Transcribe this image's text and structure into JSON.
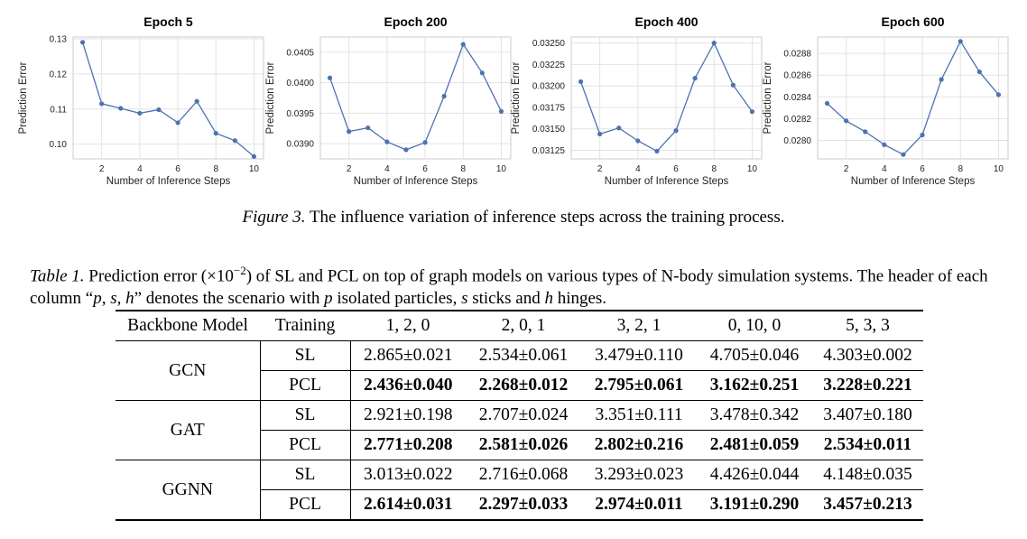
{
  "chart_data": [
    {
      "type": "line",
      "title": "Epoch 5",
      "xlabel": "Number of Inference Steps",
      "ylabel": "Prediction Error",
      "x": [
        1,
        2,
        3,
        4,
        5,
        6,
        7,
        8,
        9,
        10
      ],
      "y": [
        0.129,
        0.1115,
        0.1102,
        0.1088,
        0.1098,
        0.1061,
        0.1122,
        0.1031,
        0.101,
        0.0965
      ],
      "xlim": [
        0.5,
        10.5
      ],
      "ylim": [
        0.0958,
        0.1305
      ],
      "xticks": [
        2,
        4,
        6,
        8,
        10
      ],
      "xticklabels": [
        "2",
        "4",
        "6",
        "8",
        "10"
      ],
      "yticks": [
        0.1,
        0.11,
        0.12,
        0.13
      ],
      "yticklabels": [
        "0.10",
        "0.11",
        "0.12",
        "0.13"
      ],
      "grid": true
    },
    {
      "type": "line",
      "title": "Epoch 200",
      "xlabel": "Number of Inference Steps",
      "ylabel": "Prediction Error",
      "x": [
        1,
        2,
        3,
        4,
        5,
        6,
        7,
        8,
        9,
        10
      ],
      "y": [
        0.04008,
        0.0392,
        0.03926,
        0.03903,
        0.0389,
        0.03902,
        0.03978,
        0.04063,
        0.04016,
        0.03953
      ],
      "xlim": [
        0.5,
        10.5
      ],
      "ylim": [
        0.03875,
        0.04075
      ],
      "xticks": [
        2,
        4,
        6,
        8,
        10
      ],
      "xticklabels": [
        "2",
        "4",
        "6",
        "8",
        "10"
      ],
      "yticks": [
        0.039,
        0.0395,
        0.04,
        0.0405
      ],
      "yticklabels": [
        "0.0390",
        "0.0395",
        "0.0400",
        "0.0405"
      ],
      "grid": true
    },
    {
      "type": "line",
      "title": "Epoch 400",
      "xlabel": "Number of Inference Steps",
      "ylabel": "Prediction Error",
      "x": [
        1,
        2,
        3,
        4,
        5,
        6,
        7,
        8,
        9,
        10
      ],
      "y": [
        0.03205,
        0.03144,
        0.03151,
        0.03136,
        0.03124,
        0.03148,
        0.03209,
        0.0325,
        0.03201,
        0.0317
      ],
      "xlim": [
        0.5,
        10.5
      ],
      "ylim": [
        0.03115,
        0.03257
      ],
      "xticks": [
        2,
        4,
        6,
        8,
        10
      ],
      "xticklabels": [
        "2",
        "4",
        "6",
        "8",
        "10"
      ],
      "yticks": [
        0.03125,
        0.0315,
        0.03175,
        0.032,
        0.03225,
        0.0325
      ],
      "yticklabels": [
        "0.03125",
        "0.03150",
        "0.03175",
        "0.03200",
        "0.03225",
        "0.03250"
      ],
      "grid": true
    },
    {
      "type": "line",
      "title": "Epoch 600",
      "xlabel": "Number of Inference Steps",
      "ylabel": "Prediction Error",
      "x": [
        1,
        2,
        3,
        4,
        5,
        6,
        7,
        8,
        9,
        10
      ],
      "y": [
        0.02834,
        0.02818,
        0.02808,
        0.02796,
        0.02787,
        0.02805,
        0.02856,
        0.02891,
        0.02863,
        0.02842
      ],
      "xlim": [
        0.5,
        10.5
      ],
      "ylim": [
        0.02783,
        0.02895
      ],
      "xticks": [
        2,
        4,
        6,
        8,
        10
      ],
      "xticklabels": [
        "2",
        "4",
        "6",
        "8",
        "10"
      ],
      "yticks": [
        0.028,
        0.0282,
        0.0284,
        0.0286,
        0.0288
      ],
      "yticklabels": [
        "0.0280",
        "0.0282",
        "0.0284",
        "0.0286",
        "0.0288"
      ],
      "grid": true
    }
  ],
  "figure_caption": {
    "label": "Figure 3.",
    "text": "The influence variation of inference steps across the training process."
  },
  "table_caption": {
    "label": "Table 1.",
    "part1": "Prediction error (×10",
    "exp": "−2",
    "part2": ") of SL and PCL on top of graph models on various types of N-body simulation systems. The header of each column “",
    "vars": "p, s, h",
    "part3": "” denotes the scenario with ",
    "v1": "p",
    "part4": " isolated particles, ",
    "v2": "s",
    "part5": " sticks and ",
    "v3": "h",
    "part6": " hinges."
  },
  "table": {
    "headers": [
      "Backbone Model",
      "Training",
      "1, 2, 0",
      "2, 0, 1",
      "3, 2, 1",
      "0, 10, 0",
      "5, 3, 3"
    ],
    "groups": [
      {
        "model": "GCN",
        "sl": [
          "2.865±0.021",
          "2.534±0.061",
          "3.479±0.110",
          "4.705±0.046",
          "4.303±0.002"
        ],
        "pcl": [
          "2.436±0.040",
          "2.268±0.012",
          "2.795±0.061",
          "3.162±0.251",
          "3.228±0.221"
        ]
      },
      {
        "model": "GAT",
        "sl": [
          "2.921±0.198",
          "2.707±0.024",
          "3.351±0.111",
          "3.478±0.342",
          "3.407±0.180"
        ],
        "pcl": [
          "2.771±0.208",
          "2.581±0.026",
          "2.802±0.216",
          "2.481±0.059",
          "2.534±0.011"
        ]
      },
      {
        "model": "GGNN",
        "sl": [
          "3.013±0.022",
          "2.716±0.068",
          "3.293±0.023",
          "4.426±0.044",
          "4.148±0.035"
        ],
        "pcl": [
          "2.614±0.031",
          "2.297±0.033",
          "2.974±0.011",
          "3.191±0.290",
          "3.457±0.213"
        ]
      }
    ],
    "row_labels": {
      "sl": "SL",
      "pcl": "PCL"
    }
  },
  "colors": {
    "line": "#4c72b0",
    "grid": "#e3e3e3",
    "frame": "#cccccc",
    "text": "#222222"
  }
}
